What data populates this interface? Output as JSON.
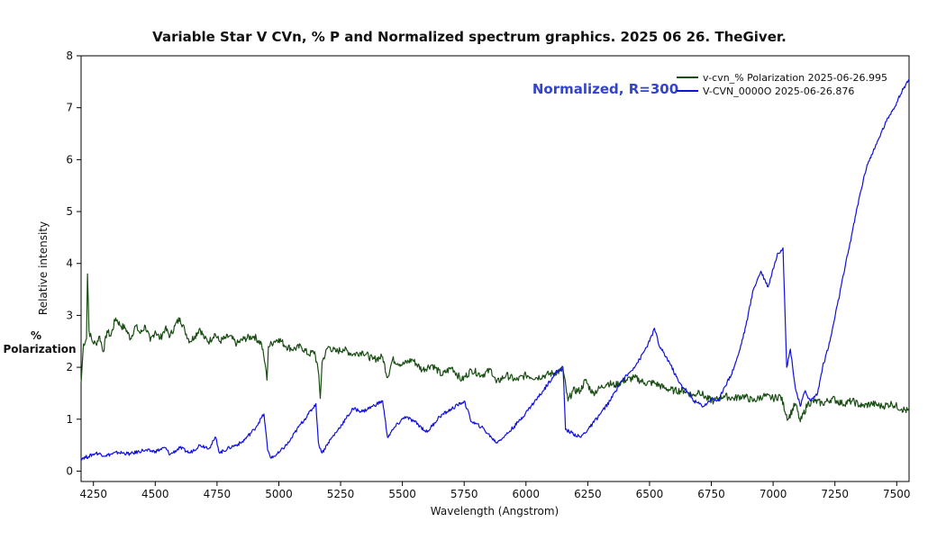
{
  "chart_data": {
    "type": "line",
    "title": "Variable Star V CVn, % P and Normalized spectrum graphics.  2025 06 26.  TheGiver.",
    "xlabel": "Wavelength (Angstrom)",
    "ylabel": "Relative intensity",
    "ylabel2_line1": "%",
    "ylabel2_line2": "Polarization",
    "xlim": [
      4200,
      7550
    ],
    "ylim": [
      -0.2,
      8
    ],
    "xticks": [
      4250,
      4500,
      4750,
      5000,
      5250,
      5500,
      5750,
      6000,
      6250,
      6500,
      6750,
      7000,
      7250,
      7500
    ],
    "yticks": [
      0,
      1,
      2,
      3,
      4,
      5,
      6,
      7,
      8
    ],
    "grid": false,
    "legend_position": "top-right",
    "annotation": {
      "text": "Normalized, R=300",
      "color": "#3344cc"
    },
    "colors": {
      "green": "#1a4d14",
      "blue": "#1010e0"
    },
    "series": [
      {
        "name": "v-cvn_% Polarization  2025-06-26.995",
        "color": "#1a4d14",
        "points": [
          [
            4200,
            1.7
          ],
          [
            4210,
            2.45
          ],
          [
            4222,
            2.55
          ],
          [
            4226,
            3.8
          ],
          [
            4232,
            2.7
          ],
          [
            4245,
            2.5
          ],
          [
            4260,
            2.45
          ],
          [
            4275,
            2.6
          ],
          [
            4290,
            2.3
          ],
          [
            4305,
            2.7
          ],
          [
            4320,
            2.6
          ],
          [
            4340,
            2.95
          ],
          [
            4360,
            2.8
          ],
          [
            4380,
            2.75
          ],
          [
            4400,
            2.55
          ],
          [
            4420,
            2.8
          ],
          [
            4440,
            2.65
          ],
          [
            4460,
            2.8
          ],
          [
            4480,
            2.5
          ],
          [
            4500,
            2.7
          ],
          [
            4520,
            2.55
          ],
          [
            4540,
            2.75
          ],
          [
            4560,
            2.6
          ],
          [
            4580,
            2.8
          ],
          [
            4600,
            2.95
          ],
          [
            4620,
            2.7
          ],
          [
            4640,
            2.5
          ],
          [
            4660,
            2.6
          ],
          [
            4680,
            2.75
          ],
          [
            4700,
            2.55
          ],
          [
            4720,
            2.5
          ],
          [
            4740,
            2.65
          ],
          [
            4760,
            2.5
          ],
          [
            4780,
            2.55
          ],
          [
            4800,
            2.6
          ],
          [
            4830,
            2.45
          ],
          [
            4860,
            2.55
          ],
          [
            4900,
            2.6
          ],
          [
            4930,
            2.45
          ],
          [
            4945,
            2.05
          ],
          [
            4952,
            1.75
          ],
          [
            4958,
            2.4
          ],
          [
            4980,
            2.5
          ],
          [
            5000,
            2.55
          ],
          [
            5030,
            2.4
          ],
          [
            5060,
            2.35
          ],
          [
            5090,
            2.4
          ],
          [
            5120,
            2.25
          ],
          [
            5145,
            2.3
          ],
          [
            5162,
            1.85
          ],
          [
            5168,
            1.4
          ],
          [
            5175,
            2.1
          ],
          [
            5200,
            2.4
          ],
          [
            5230,
            2.3
          ],
          [
            5260,
            2.35
          ],
          [
            5300,
            2.25
          ],
          [
            5340,
            2.3
          ],
          [
            5380,
            2.15
          ],
          [
            5420,
            2.2
          ],
          [
            5440,
            1.8
          ],
          [
            5460,
            2.15
          ],
          [
            5500,
            2.05
          ],
          [
            5540,
            2.15
          ],
          [
            5580,
            1.95
          ],
          [
            5620,
            2.05
          ],
          [
            5660,
            1.85
          ],
          [
            5700,
            2.0
          ],
          [
            5740,
            1.75
          ],
          [
            5780,
            1.95
          ],
          [
            5820,
            1.85
          ],
          [
            5860,
            1.95
          ],
          [
            5880,
            1.7
          ],
          [
            5920,
            1.85
          ],
          [
            5960,
            1.75
          ],
          [
            6000,
            1.85
          ],
          [
            6040,
            1.8
          ],
          [
            6080,
            1.85
          ],
          [
            6120,
            1.9
          ],
          [
            6150,
            1.95
          ],
          [
            6170,
            1.35
          ],
          [
            6190,
            1.55
          ],
          [
            6220,
            1.55
          ],
          [
            6240,
            1.75
          ],
          [
            6270,
            1.5
          ],
          [
            6300,
            1.6
          ],
          [
            6330,
            1.7
          ],
          [
            6360,
            1.65
          ],
          [
            6400,
            1.75
          ],
          [
            6440,
            1.8
          ],
          [
            6480,
            1.7
          ],
          [
            6520,
            1.7
          ],
          [
            6560,
            1.6
          ],
          [
            6600,
            1.55
          ],
          [
            6640,
            1.55
          ],
          [
            6680,
            1.45
          ],
          [
            6700,
            1.55
          ],
          [
            6730,
            1.4
          ],
          [
            6760,
            1.35
          ],
          [
            6800,
            1.45
          ],
          [
            6840,
            1.4
          ],
          [
            6880,
            1.45
          ],
          [
            6920,
            1.35
          ],
          [
            6960,
            1.45
          ],
          [
            7000,
            1.4
          ],
          [
            7030,
            1.45
          ],
          [
            7060,
            1.0
          ],
          [
            7090,
            1.3
          ],
          [
            7110,
            0.95
          ],
          [
            7140,
            1.3
          ],
          [
            7170,
            1.35
          ],
          [
            7200,
            1.3
          ],
          [
            7240,
            1.4
          ],
          [
            7280,
            1.3
          ],
          [
            7320,
            1.35
          ],
          [
            7360,
            1.25
          ],
          [
            7400,
            1.3
          ],
          [
            7440,
            1.25
          ],
          [
            7480,
            1.3
          ],
          [
            7520,
            1.2
          ],
          [
            7550,
            1.15
          ]
        ]
      },
      {
        "name": "V-CVN_0000O  2025-06-26.876",
        "color": "#1010e0",
        "points": [
          [
            4200,
            0.25
          ],
          [
            4230,
            0.28
          ],
          [
            4260,
            0.35
          ],
          [
            4300,
            0.3
          ],
          [
            4350,
            0.36
          ],
          [
            4400,
            0.33
          ],
          [
            4450,
            0.4
          ],
          [
            4500,
            0.38
          ],
          [
            4540,
            0.45
          ],
          [
            4560,
            0.32
          ],
          [
            4600,
            0.45
          ],
          [
            4640,
            0.35
          ],
          [
            4680,
            0.5
          ],
          [
            4720,
            0.45
          ],
          [
            4745,
            0.65
          ],
          [
            4760,
            0.35
          ],
          [
            4800,
            0.45
          ],
          [
            4850,
            0.55
          ],
          [
            4900,
            0.8
          ],
          [
            4940,
            1.1
          ],
          [
            4955,
            0.4
          ],
          [
            4970,
            0.25
          ],
          [
            5000,
            0.35
          ],
          [
            5040,
            0.55
          ],
          [
            5080,
            0.85
          ],
          [
            5120,
            1.1
          ],
          [
            5150,
            1.3
          ],
          [
            5160,
            0.55
          ],
          [
            5175,
            0.35
          ],
          [
            5200,
            0.55
          ],
          [
            5240,
            0.8
          ],
          [
            5270,
            1.0
          ],
          [
            5300,
            1.2
          ],
          [
            5340,
            1.15
          ],
          [
            5380,
            1.25
          ],
          [
            5420,
            1.35
          ],
          [
            5440,
            0.65
          ],
          [
            5470,
            0.85
          ],
          [
            5510,
            1.05
          ],
          [
            5550,
            0.95
          ],
          [
            5600,
            0.75
          ],
          [
            5650,
            1.05
          ],
          [
            5700,
            1.2
          ],
          [
            5750,
            1.35
          ],
          [
            5780,
            0.95
          ],
          [
            5820,
            0.85
          ],
          [
            5860,
            0.65
          ],
          [
            5880,
            0.55
          ],
          [
            5920,
            0.7
          ],
          [
            5970,
            0.95
          ],
          [
            6020,
            1.25
          ],
          [
            6070,
            1.55
          ],
          [
            6120,
            1.9
          ],
          [
            6150,
            2.0
          ],
          [
            6160,
            0.8
          ],
          [
            6180,
            0.75
          ],
          [
            6220,
            0.65
          ],
          [
            6260,
            0.85
          ],
          [
            6300,
            1.1
          ],
          [
            6340,
            1.35
          ],
          [
            6380,
            1.7
          ],
          [
            6420,
            1.9
          ],
          [
            6460,
            2.15
          ],
          [
            6500,
            2.5
          ],
          [
            6520,
            2.75
          ],
          [
            6540,
            2.4
          ],
          [
            6580,
            2.1
          ],
          [
            6620,
            1.7
          ],
          [
            6650,
            1.55
          ],
          [
            6680,
            1.35
          ],
          [
            6720,
            1.25
          ],
          [
            6750,
            1.4
          ],
          [
            6780,
            1.35
          ],
          [
            6800,
            1.6
          ],
          [
            6830,
            1.85
          ],
          [
            6860,
            2.25
          ],
          [
            6890,
            2.8
          ],
          [
            6920,
            3.5
          ],
          [
            6950,
            3.85
          ],
          [
            6980,
            3.55
          ],
          [
            7000,
            3.9
          ],
          [
            7020,
            4.2
          ],
          [
            7040,
            4.3
          ],
          [
            7055,
            2.0
          ],
          [
            7070,
            2.35
          ],
          [
            7090,
            1.6
          ],
          [
            7110,
            1.25
          ],
          [
            7130,
            1.55
          ],
          [
            7150,
            1.35
          ],
          [
            7180,
            1.5
          ],
          [
            7200,
            2.0
          ],
          [
            7230,
            2.5
          ],
          [
            7260,
            3.2
          ],
          [
            7290,
            3.9
          ],
          [
            7320,
            4.6
          ],
          [
            7350,
            5.3
          ],
          [
            7380,
            5.9
          ],
          [
            7410,
            6.2
          ],
          [
            7440,
            6.55
          ],
          [
            7470,
            6.85
          ],
          [
            7500,
            7.1
          ],
          [
            7530,
            7.4
          ],
          [
            7550,
            7.55
          ]
        ]
      }
    ]
  }
}
